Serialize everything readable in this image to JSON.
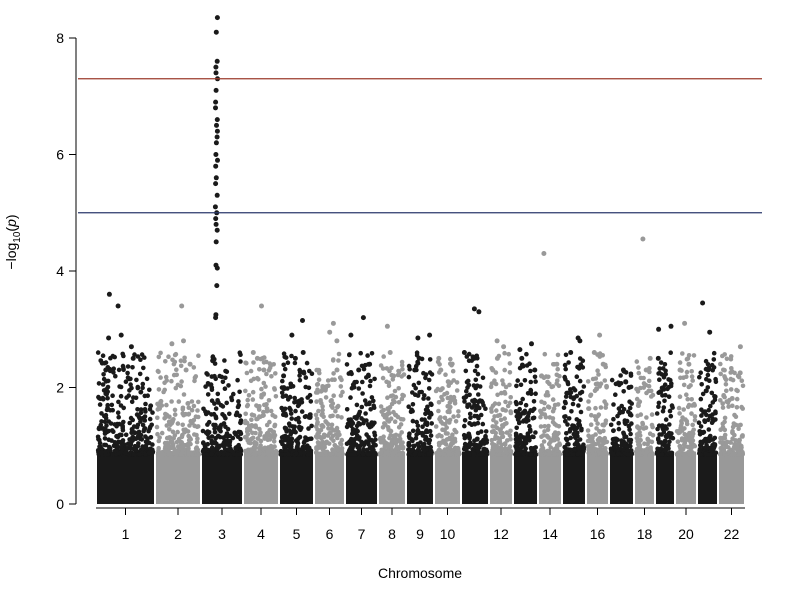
{
  "chart_data": {
    "type": "scatter",
    "subtype": "manhattan",
    "title": "",
    "xlabel": "Chromosome",
    "ylabel": "-log10(p)",
    "ylim": [
      0,
      8.4
    ],
    "yticks": [
      0,
      2,
      4,
      6,
      8
    ],
    "x_tick_labels": [
      "1",
      "2",
      "3",
      "4",
      "5",
      "6",
      "7",
      "8",
      "9",
      "10",
      "12",
      "14",
      "16",
      "18",
      "20",
      "22"
    ],
    "chromosomes": [
      {
        "chr": 1,
        "max": 3.6,
        "color": "#1a1a1a",
        "tops": [
          3.6,
          3.4,
          2.9,
          2.85,
          2.7,
          2.5,
          2.3
        ]
      },
      {
        "chr": 2,
        "max": 3.4,
        "color": "#999999",
        "tops": [
          3.4,
          2.8,
          2.75,
          2.4,
          2.3
        ]
      },
      {
        "chr": 3,
        "max": 8.35,
        "color": "#1a1a1a",
        "tops": [
          8.35,
          8.1,
          7.6,
          7.5,
          7.4,
          7.3,
          7.1,
          6.9,
          6.8,
          6.6,
          6.5,
          6.4,
          6.3,
          6.2,
          6.0,
          5.9,
          5.8,
          5.6,
          5.5,
          5.3,
          5.1,
          5.0,
          4.9,
          4.8,
          4.7,
          4.5,
          4.1,
          4.05,
          3.75,
          3.25,
          3.2
        ]
      },
      {
        "chr": 4,
        "max": 3.4,
        "color": "#999999",
        "tops": [
          3.4,
          2.6,
          2.5,
          2.3
        ]
      },
      {
        "chr": 5,
        "max": 3.15,
        "color": "#1a1a1a",
        "tops": [
          3.15,
          2.9,
          2.6,
          2.5,
          2.2
        ]
      },
      {
        "chr": 6,
        "max": 3.1,
        "color": "#999999",
        "tops": [
          3.1,
          2.95,
          2.8,
          2.3
        ]
      },
      {
        "chr": 7,
        "max": 3.2,
        "color": "#1a1a1a",
        "tops": [
          3.2,
          2.9,
          2.4,
          2.3,
          2.2
        ]
      },
      {
        "chr": 8,
        "max": 3.05,
        "color": "#999999",
        "tops": [
          3.05,
          2.6,
          2.2
        ]
      },
      {
        "chr": 9,
        "max": 2.9,
        "color": "#1a1a1a",
        "tops": [
          2.9,
          2.85,
          2.5,
          2.3
        ]
      },
      {
        "chr": 10,
        "max": 2.5,
        "color": "#999999",
        "tops": [
          2.5,
          2.3,
          2.1
        ]
      },
      {
        "chr": 11,
        "max": 3.35,
        "color": "#1a1a1a",
        "tops": [
          3.35,
          3.3,
          2.6,
          2.5
        ]
      },
      {
        "chr": 12,
        "max": 2.8,
        "color": "#999999",
        "tops": [
          2.8,
          2.7,
          2.5,
          2.3
        ]
      },
      {
        "chr": 13,
        "max": 2.75,
        "color": "#1a1a1a",
        "tops": [
          2.75,
          2.65,
          2.5,
          2.3
        ]
      },
      {
        "chr": 14,
        "max": 4.3,
        "color": "#999999",
        "tops": [
          4.3,
          2.4,
          2.2
        ]
      },
      {
        "chr": 15,
        "max": 2.85,
        "color": "#1a1a1a",
        "tops": [
          2.85,
          2.8,
          2.6
        ]
      },
      {
        "chr": 16,
        "max": 2.9,
        "color": "#999999",
        "tops": [
          2.9,
          2.6,
          2.4
        ]
      },
      {
        "chr": 17,
        "max": 2.3,
        "color": "#1a1a1a",
        "tops": [
          2.3,
          2.1,
          2.0
        ]
      },
      {
        "chr": 18,
        "max": 4.55,
        "color": "#999999",
        "tops": [
          4.55,
          2.5,
          2.3
        ]
      },
      {
        "chr": 19,
        "max": 3.05,
        "color": "#1a1a1a",
        "tops": [
          3.05,
          3.0,
          2.5
        ]
      },
      {
        "chr": 20,
        "max": 3.1,
        "color": "#999999",
        "tops": [
          3.1,
          2.4,
          2.3
        ]
      },
      {
        "chr": 21,
        "max": 3.45,
        "color": "#1a1a1a",
        "tops": [
          3.45,
          2.95,
          2.3
        ]
      },
      {
        "chr": 22,
        "max": 2.7,
        "color": "#999999",
        "tops": [
          2.7,
          2.25,
          2.2
        ]
      }
    ],
    "threshold_lines": [
      {
        "value": 7.3,
        "color": "#9c3c2d"
      },
      {
        "value": 5.0,
        "color": "#2b3a6b"
      }
    ],
    "grid": false,
    "legend": "none"
  }
}
